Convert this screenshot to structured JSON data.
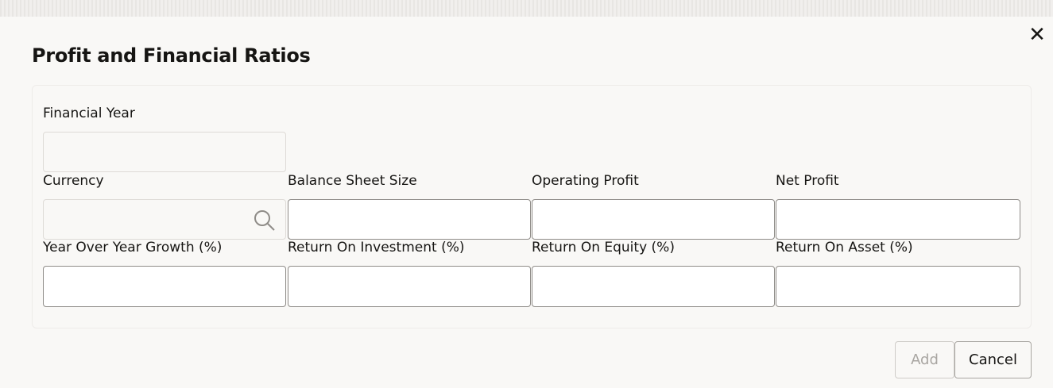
{
  "dialog": {
    "title": "Profit and Financial Ratios",
    "close_icon": "close-icon"
  },
  "fields": {
    "financial_year": {
      "label": "Financial Year",
      "value": ""
    },
    "currency": {
      "label": "Currency",
      "value": "",
      "icon": "search-icon"
    },
    "balance_sheet_size": {
      "label": "Balance Sheet Size",
      "value": ""
    },
    "operating_profit": {
      "label": "Operating Profit",
      "value": ""
    },
    "net_profit": {
      "label": "Net Profit",
      "value": ""
    },
    "yoy_growth": {
      "label": "Year Over Year Growth (%)",
      "value": ""
    },
    "roi": {
      "label": "Return On Investment (%)",
      "value": ""
    },
    "roe": {
      "label": "Return On Equity (%)",
      "value": ""
    },
    "roa": {
      "label": "Return On Asset (%)",
      "value": ""
    }
  },
  "actions": {
    "add": "Add",
    "cancel": "Cancel"
  }
}
